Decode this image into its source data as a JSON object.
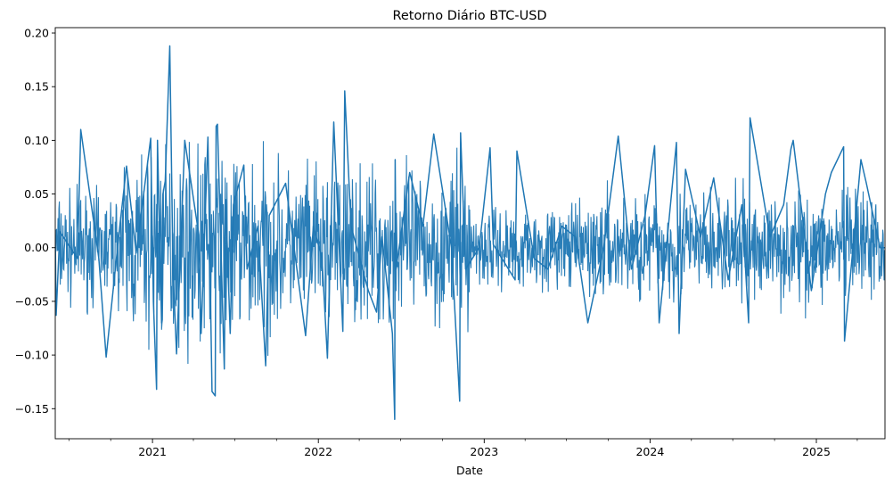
{
  "chart_data": {
    "type": "line",
    "title": "Retorno Diário BTC-USD",
    "xlabel": "Date",
    "ylabel": "",
    "x_range": [
      "2020-06-01",
      "2025-06-01"
    ],
    "ylim": [
      -0.178,
      0.205
    ],
    "y_ticks": [
      -0.15,
      -0.1,
      -0.05,
      0.0,
      0.05,
      0.1,
      0.15,
      0.2
    ],
    "y_tick_labels": [
      "−0.15",
      "−0.10",
      "−0.05",
      "0.00",
      "0.05",
      "0.10",
      "0.15",
      "0.20"
    ],
    "x_major_ticks": [
      "2021-01-01",
      "2022-01-01",
      "2023-01-01",
      "2024-01-01",
      "2025-01-01"
    ],
    "x_major_labels": [
      "2021",
      "2022",
      "2023",
      "2024",
      "2025"
    ],
    "grid": false,
    "legend": "none",
    "series": [
      {
        "color": "#1f77b4",
        "x": [
          "2020-06-01",
          "2020-06-03",
          "2020-06-11",
          "2020-07-20",
          "2020-07-27",
          "2020-09-05",
          "2020-09-21",
          "2020-10-21",
          "2020-11-05",
          "2020-11-26",
          "2020-12-28",
          "2021-01-03",
          "2021-01-10",
          "2021-01-12",
          "2021-01-21",
          "2021-01-24",
          "2021-01-29",
          "2021-02-08",
          "2021-02-15",
          "2021-02-23",
          "2021-03-13",
          "2021-04-13",
          "2021-04-18",
          "2021-05-03",
          "2021-05-12",
          "2021-05-19",
          "2021-05-21",
          "2021-05-24",
          "2021-06-08",
          "2021-06-11",
          "2021-06-21",
          "2021-06-28",
          "2021-07-21",
          "2021-07-28",
          "2021-08-21",
          "2021-09-07",
          "2021-09-15",
          "2021-10-21",
          "2021-11-21",
          "2021-12-04",
          "2021-12-21",
          "2022-01-09",
          "2022-01-21",
          "2022-02-04",
          "2022-02-24",
          "2022-02-28",
          "2022-03-14",
          "2022-04-21",
          "2022-05-09",
          "2022-05-21",
          "2022-06-13",
          "2022-06-18",
          "2022-06-19",
          "2022-06-21",
          "2022-07-21",
          "2022-08-19",
          "2022-09-12",
          "2022-10-21",
          "2022-11-08",
          "2022-11-10",
          "2022-11-21",
          "2022-12-21",
          "2023-01-14",
          "2023-01-21",
          "2023-03-10",
          "2023-03-14",
          "2023-04-21",
          "2023-05-21",
          "2023-06-21",
          "2023-07-21",
          "2023-08-17",
          "2023-09-21",
          "2023-10-23",
          "2023-11-21",
          "2023-12-21",
          "2024-01-11",
          "2024-01-21",
          "2024-02-28",
          "2024-03-05",
          "2024-03-19",
          "2024-04-21",
          "2024-05-20",
          "2024-06-21",
          "2024-07-21",
          "2024-08-05",
          "2024-08-08",
          "2024-09-21",
          "2024-10-21",
          "2024-11-06",
          "2024-11-11",
          "2024-12-21",
          "2025-01-21",
          "2025-02-03",
          "2025-03-02",
          "2025-03-04",
          "2025-04-09",
          "2025-04-21",
          "2025-05-21",
          "2025-06-01"
        ],
        "values": [
          0.012,
          -0.063,
          0.015,
          -0.01,
          0.11,
          -0.01,
          -0.102,
          0.02,
          0.076,
          -0.005,
          0.102,
          -0.05,
          -0.132,
          0.1,
          -0.07,
          0.05,
          0.062,
          0.188,
          -0.02,
          -0.099,
          0.1,
          0.012,
          -0.08,
          0.103,
          -0.134,
          -0.138,
          0.113,
          0.115,
          -0.113,
          0.045,
          -0.08,
          0.04,
          0.077,
          -0.02,
          0.02,
          -0.11,
          0.03,
          0.06,
          -0.04,
          -0.082,
          0.02,
          -0.01,
          -0.103,
          0.117,
          -0.078,
          0.146,
          0.02,
          -0.04,
          -0.06,
          0.01,
          -0.08,
          -0.16,
          0.082,
          -0.02,
          0.07,
          0.02,
          0.106,
          0.0,
          -0.143,
          0.107,
          -0.02,
          0.0,
          0.093,
          0.003,
          -0.03,
          0.09,
          -0.01,
          -0.02,
          0.02,
          0.01,
          -0.07,
          0.0,
          0.104,
          -0.02,
          0.03,
          0.095,
          -0.07,
          0.098,
          -0.08,
          0.073,
          0.01,
          0.065,
          -0.03,
          0.04,
          -0.07,
          0.121,
          0.01,
          0.04,
          0.092,
          0.1,
          -0.04,
          0.05,
          0.07,
          0.094,
          -0.087,
          0.082,
          0.06,
          0.0,
          0.0
        ]
      }
    ]
  }
}
